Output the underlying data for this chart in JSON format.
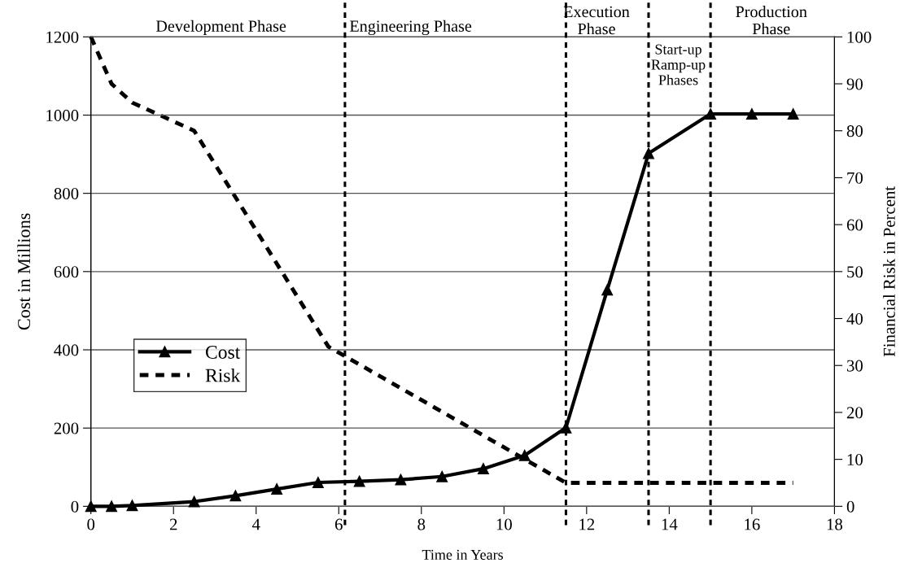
{
  "chart_data": {
    "type": "line",
    "xlabel": "Time in Years",
    "ylabel": "Cost in Millions",
    "y2label": "Financial Risk in Percent",
    "xlim": [
      0,
      18
    ],
    "xticks": [
      0,
      2,
      4,
      6,
      8,
      10,
      12,
      14,
      16,
      18
    ],
    "ylim": [
      0,
      1200
    ],
    "yticks": [
      0,
      200,
      400,
      600,
      800,
      1000,
      1200
    ],
    "y2lim": [
      0,
      100
    ],
    "y2ticks": [
      0,
      10,
      20,
      30,
      40,
      50,
      60,
      70,
      80,
      90,
      100
    ],
    "grid": "y",
    "legend": "left",
    "series": [
      {
        "name": "Cost",
        "color": "#000000",
        "marker": "triangle",
        "line_style": "solid",
        "x": [
          0,
          0.5,
          1,
          2.5,
          3.5,
          4.5,
          5.5,
          6.5,
          7.5,
          8.5,
          9.5,
          10.5,
          11.5,
          12.5,
          13.5,
          15,
          16,
          17
        ],
        "values": [
          0,
          0,
          2,
          12,
          27,
          44,
          61,
          64,
          68,
          76,
          96,
          130,
          201,
          553,
          902,
          1003,
          1003,
          1003
        ]
      },
      {
        "name": "Risk",
        "color": "#000000",
        "marker": "none",
        "line_style": "dashed",
        "axis": "y2",
        "x": [
          0,
          0.5,
          1,
          2.5,
          5.75,
          11.5,
          17
        ],
        "values": [
          100,
          90,
          86,
          80,
          34,
          5,
          5
        ]
      }
    ],
    "ref_lines": [
      {
        "axis": "x",
        "value": 6.15,
        "line_style": "dashed"
      },
      {
        "axis": "x",
        "value": 11.5,
        "line_style": "dashed"
      },
      {
        "axis": "x",
        "value": 13.5,
        "line_style": "dashed"
      },
      {
        "axis": "x",
        "value": 15,
        "line_style": "dashed"
      }
    ],
    "annotations": [
      "Development Phase",
      "Engineering Phase",
      "Execution\nPhase",
      "Start-up\nRamp-up\nPhases",
      "Production\nPhase"
    ]
  }
}
